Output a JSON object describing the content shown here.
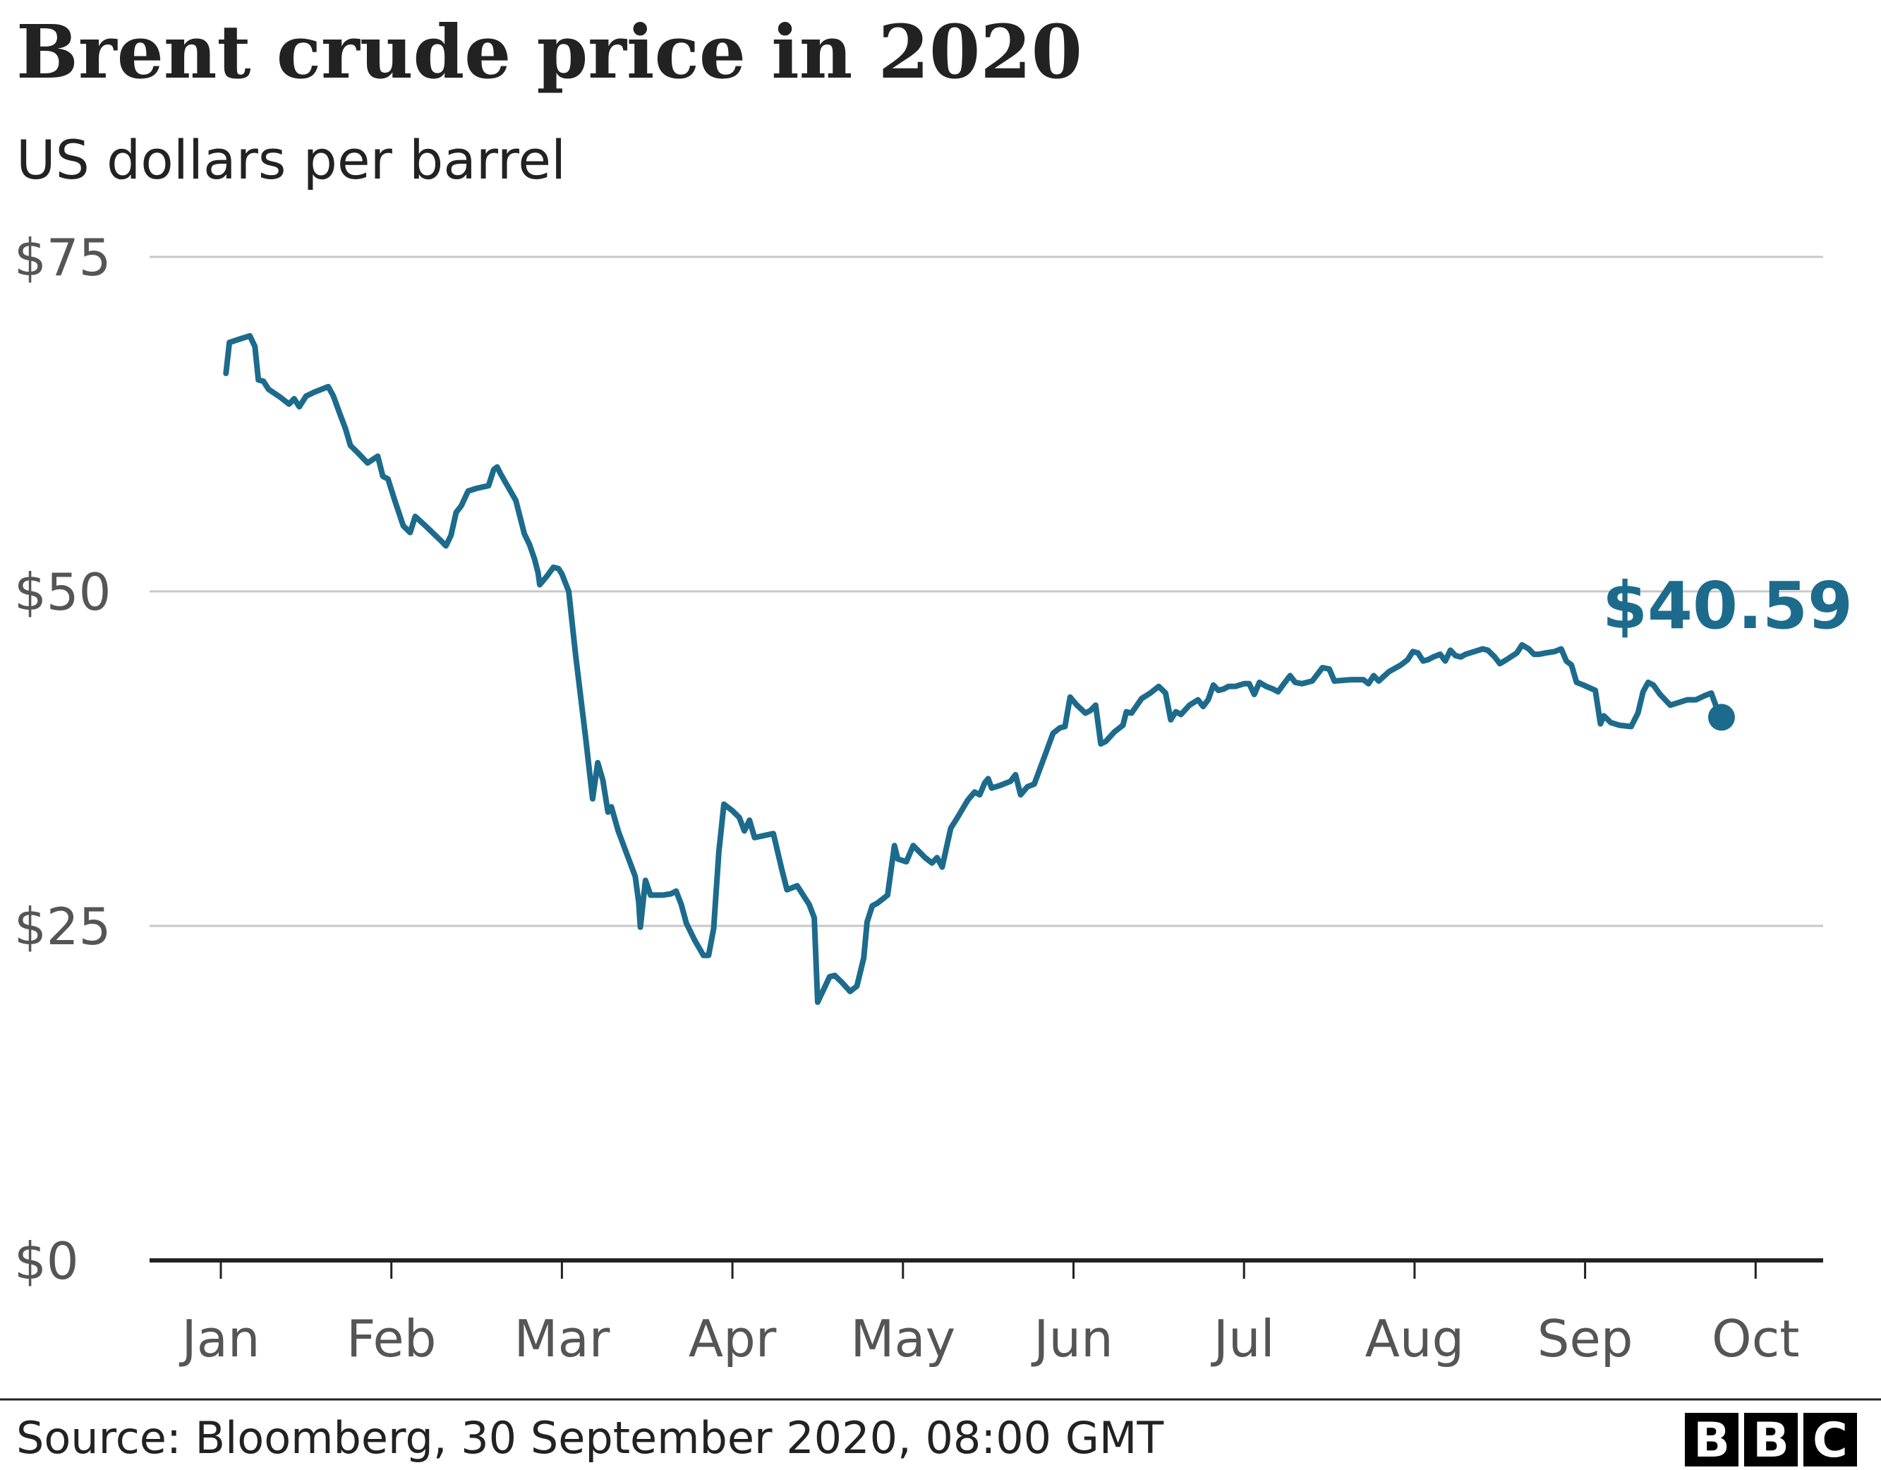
{
  "title": "Brent crude price in 2020",
  "subtitle": "US dollars per barrel",
  "source": "Source: Bloomberg, 30 September 2020, 08:00 GMT",
  "logo": {
    "letters": [
      "B",
      "B",
      "C"
    ]
  },
  "colors": {
    "line": "#1d6b8c",
    "grid": "#c8c8c8",
    "axis": "#222222",
    "text": "#222222",
    "tick_text": "#555555",
    "logo_bg": "#000000"
  },
  "chart_data": {
    "type": "line",
    "title": "Brent crude price in 2020",
    "ylabel": "US dollars per barrel",
    "xlabel": "",
    "ylim": [
      0,
      75
    ],
    "xlim": [
      -0.35,
      8.95
    ],
    "y_ticks": [
      {
        "value": 75,
        "label": "$75"
      },
      {
        "value": 50,
        "label": "$50"
      },
      {
        "value": 25,
        "label": "$25"
      },
      {
        "value": 0,
        "label": "$0"
      }
    ],
    "x_ticks": [
      {
        "value": 0,
        "label": "Jan"
      },
      {
        "value": 1,
        "label": "Feb"
      },
      {
        "value": 2,
        "label": "Mar"
      },
      {
        "value": 3,
        "label": "Apr"
      },
      {
        "value": 4,
        "label": "May"
      },
      {
        "value": 5,
        "label": "Jun"
      },
      {
        "value": 6,
        "label": "Jul"
      },
      {
        "value": 7,
        "label": "Aug"
      },
      {
        "value": 8,
        "label": "Sep"
      },
      {
        "value": 9,
        "label": "Oct"
      }
    ],
    "grid": true,
    "legend": "none",
    "series": [
      {
        "name": "Brent crude",
        "points": [
          [
            0.03,
            66.3
          ],
          [
            0.05,
            68.6
          ],
          [
            0.12,
            68.9
          ],
          [
            0.17,
            69.1
          ],
          [
            0.2,
            68.3
          ],
          [
            0.22,
            65.8
          ],
          [
            0.25,
            65.7
          ],
          [
            0.28,
            65.1
          ],
          [
            0.35,
            64.5
          ],
          [
            0.4,
            64.0
          ],
          [
            0.43,
            64.4
          ],
          [
            0.46,
            63.8
          ],
          [
            0.5,
            64.6
          ],
          [
            0.55,
            64.9
          ],
          [
            0.63,
            65.3
          ],
          [
            0.66,
            64.6
          ],
          [
            0.7,
            63.2
          ],
          [
            0.73,
            62.2
          ],
          [
            0.76,
            60.9
          ],
          [
            0.8,
            60.4
          ],
          [
            0.86,
            59.6
          ],
          [
            0.92,
            60.1
          ],
          [
            0.95,
            58.6
          ],
          [
            0.98,
            58.4
          ],
          [
            1.02,
            56.8
          ],
          [
            1.07,
            54.9
          ],
          [
            1.11,
            54.4
          ],
          [
            1.14,
            55.6
          ],
          [
            1.2,
            54.9
          ],
          [
            1.29,
            53.8
          ],
          [
            1.32,
            53.4
          ],
          [
            1.35,
            54.2
          ],
          [
            1.38,
            55.9
          ],
          [
            1.41,
            56.4
          ],
          [
            1.45,
            57.5
          ],
          [
            1.5,
            57.7
          ],
          [
            1.57,
            57.9
          ],
          [
            1.6,
            59.1
          ],
          [
            1.62,
            59.3
          ],
          [
            1.64,
            58.8
          ],
          [
            1.68,
            57.9
          ],
          [
            1.73,
            56.8
          ],
          [
            1.78,
            54.3
          ],
          [
            1.81,
            53.5
          ],
          [
            1.84,
            52.4
          ],
          [
            1.86,
            51.4
          ],
          [
            1.87,
            50.5
          ],
          [
            1.91,
            51.1
          ],
          [
            1.95,
            51.8
          ],
          [
            1.98,
            51.7
          ],
          [
            2.0,
            51.3
          ],
          [
            2.04,
            50.0
          ],
          [
            2.08,
            45.3
          ],
          [
            2.14,
            39.0
          ],
          [
            2.18,
            34.5
          ],
          [
            2.21,
            37.2
          ],
          [
            2.24,
            35.9
          ],
          [
            2.27,
            33.5
          ],
          [
            2.29,
            33.9
          ],
          [
            2.33,
            32.1
          ],
          [
            2.38,
            30.4
          ],
          [
            2.43,
            28.7
          ],
          [
            2.45,
            26.8
          ],
          [
            2.46,
            24.9
          ],
          [
            2.49,
            28.4
          ],
          [
            2.52,
            27.3
          ],
          [
            2.59,
            27.3
          ],
          [
            2.64,
            27.4
          ],
          [
            2.67,
            27.6
          ],
          [
            2.7,
            26.6
          ],
          [
            2.73,
            25.2
          ],
          [
            2.78,
            23.9
          ],
          [
            2.83,
            22.8
          ],
          [
            2.86,
            22.8
          ],
          [
            2.89,
            24.8
          ],
          [
            2.92,
            30.5
          ],
          [
            2.95,
            34.1
          ],
          [
            3.0,
            33.6
          ],
          [
            3.04,
            33.1
          ],
          [
            3.07,
            32.1
          ],
          [
            3.1,
            32.9
          ],
          [
            3.13,
            31.6
          ],
          [
            3.24,
            31.9
          ],
          [
            3.29,
            29.2
          ],
          [
            3.32,
            27.7
          ],
          [
            3.38,
            28.0
          ],
          [
            3.45,
            26.6
          ],
          [
            3.48,
            25.6
          ],
          [
            3.5,
            19.3
          ],
          [
            3.57,
            21.2
          ],
          [
            3.6,
            21.3
          ],
          [
            3.64,
            20.8
          ],
          [
            3.69,
            20.1
          ],
          [
            3.73,
            20.5
          ],
          [
            3.77,
            22.6
          ],
          [
            3.79,
            25.3
          ],
          [
            3.82,
            26.5
          ],
          [
            3.85,
            26.7
          ],
          [
            3.91,
            27.3
          ],
          [
            3.95,
            31.0
          ],
          [
            3.97,
            30.0
          ],
          [
            4.02,
            29.8
          ],
          [
            4.06,
            31.0
          ],
          [
            4.13,
            30.1
          ],
          [
            4.17,
            29.7
          ],
          [
            4.2,
            30.1
          ],
          [
            4.23,
            29.4
          ],
          [
            4.28,
            32.3
          ],
          [
            4.32,
            33.1
          ],
          [
            4.38,
            34.4
          ],
          [
            4.42,
            35.0
          ],
          [
            4.45,
            34.8
          ],
          [
            4.48,
            35.7
          ],
          [
            4.5,
            36.0
          ],
          [
            4.52,
            35.3
          ],
          [
            4.57,
            35.5
          ],
          [
            4.63,
            35.8
          ],
          [
            4.66,
            36.3
          ],
          [
            4.69,
            34.8
          ],
          [
            4.73,
            35.4
          ],
          [
            4.77,
            35.6
          ],
          [
            4.84,
            38.0
          ],
          [
            4.88,
            39.4
          ],
          [
            4.92,
            39.8
          ],
          [
            4.95,
            39.9
          ],
          [
            4.98,
            42.1
          ],
          [
            5.02,
            41.5
          ],
          [
            5.07,
            40.9
          ],
          [
            5.1,
            41.1
          ],
          [
            5.13,
            41.5
          ],
          [
            5.16,
            38.6
          ],
          [
            5.19,
            38.8
          ],
          [
            5.24,
            39.5
          ],
          [
            5.29,
            40.0
          ],
          [
            5.31,
            41.0
          ],
          [
            5.34,
            40.9
          ],
          [
            5.4,
            42.0
          ],
          [
            5.45,
            42.4
          ],
          [
            5.5,
            42.9
          ],
          [
            5.54,
            42.4
          ],
          [
            5.57,
            40.4
          ],
          [
            5.6,
            41.0
          ],
          [
            5.63,
            40.8
          ],
          [
            5.68,
            41.5
          ],
          [
            5.73,
            41.9
          ],
          [
            5.76,
            41.4
          ],
          [
            5.79,
            41.9
          ],
          [
            5.82,
            43.0
          ],
          [
            5.85,
            42.6
          ],
          [
            5.88,
            42.7
          ],
          [
            5.91,
            42.9
          ],
          [
            5.95,
            42.9
          ],
          [
            6.0,
            43.1
          ],
          [
            6.03,
            43.1
          ],
          [
            6.06,
            42.3
          ],
          [
            6.09,
            43.2
          ],
          [
            6.13,
            42.9
          ],
          [
            6.17,
            42.7
          ],
          [
            6.2,
            42.5
          ],
          [
            6.24,
            43.2
          ],
          [
            6.27,
            43.7
          ],
          [
            6.3,
            43.2
          ],
          [
            6.34,
            43.1
          ],
          [
            6.37,
            43.2
          ],
          [
            6.4,
            43.3
          ],
          [
            6.46,
            44.3
          ],
          [
            6.5,
            44.2
          ],
          [
            6.53,
            43.3
          ],
          [
            6.63,
            43.4
          ],
          [
            6.7,
            43.4
          ],
          [
            6.73,
            43.1
          ],
          [
            6.76,
            43.7
          ],
          [
            6.79,
            43.3
          ],
          [
            6.85,
            44.0
          ],
          [
            6.92,
            44.5
          ],
          [
            6.96,
            44.9
          ],
          [
            6.99,
            45.5
          ],
          [
            7.02,
            45.4
          ],
          [
            7.05,
            44.8
          ],
          [
            7.08,
            44.9
          ],
          [
            7.11,
            45.1
          ],
          [
            7.15,
            45.3
          ],
          [
            7.18,
            44.8
          ],
          [
            7.21,
            45.6
          ],
          [
            7.24,
            45.2
          ],
          [
            7.27,
            45.1
          ],
          [
            7.3,
            45.3
          ],
          [
            7.35,
            45.5
          ],
          [
            7.4,
            45.7
          ],
          [
            7.43,
            45.6
          ],
          [
            7.47,
            45.1
          ],
          [
            7.5,
            44.6
          ],
          [
            7.54,
            44.9
          ],
          [
            7.6,
            45.4
          ],
          [
            7.63,
            46.0
          ],
          [
            7.67,
            45.7
          ],
          [
            7.7,
            45.3
          ],
          [
            7.73,
            45.3
          ],
          [
            7.77,
            45.4
          ],
          [
            7.82,
            45.5
          ],
          [
            7.86,
            45.7
          ],
          [
            7.89,
            44.8
          ],
          [
            7.92,
            44.5
          ],
          [
            7.95,
            43.2
          ],
          [
            7.99,
            43.0
          ],
          [
            8.06,
            42.6
          ],
          [
            8.09,
            40.1
          ],
          [
            8.11,
            40.7
          ],
          [
            8.15,
            40.2
          ],
          [
            8.2,
            40.0
          ],
          [
            8.27,
            39.9
          ],
          [
            8.31,
            40.9
          ],
          [
            8.34,
            42.5
          ],
          [
            8.37,
            43.2
          ],
          [
            8.4,
            43.0
          ],
          [
            8.44,
            42.3
          ],
          [
            8.5,
            41.5
          ],
          [
            8.55,
            41.7
          ],
          [
            8.6,
            41.9
          ],
          [
            8.65,
            41.9
          ],
          [
            8.7,
            42.2
          ],
          [
            8.74,
            42.4
          ],
          [
            8.78,
            41.0
          ],
          [
            8.8,
            40.59
          ]
        ]
      }
    ],
    "annotations": [
      {
        "x": 8.8,
        "y": 40.59,
        "label": "$40.59",
        "marker": "dot"
      }
    ]
  }
}
